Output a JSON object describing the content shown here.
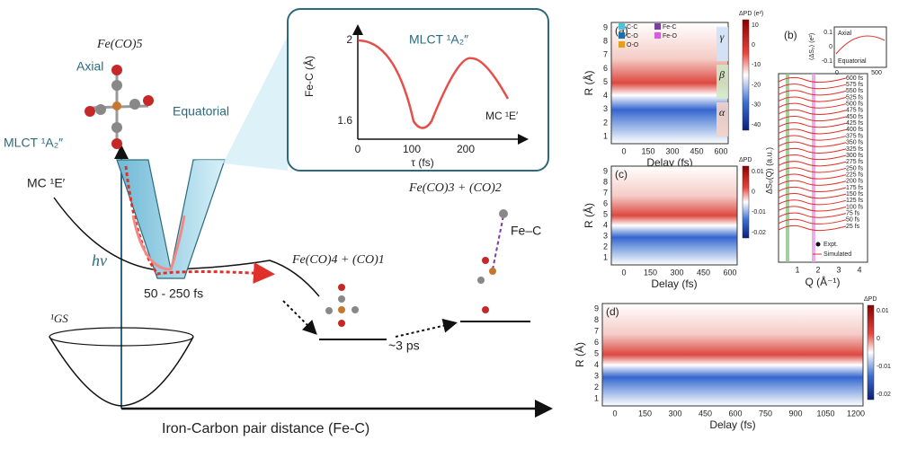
{
  "diagram": {
    "molecule": "Fe(CO)5",
    "axial": "Axial",
    "equatorial": "Equatorial",
    "mlct": "MLCT ¹A₂″",
    "mc": "MC ¹E′",
    "hv": "hν",
    "time_range": "50 - 250 fs",
    "ground": "¹GS",
    "product1": "Fe(CO)4 + (CO)1",
    "product2": "Fe(CO)3 + (CO)2",
    "bond": "Fe–C",
    "slow_time": "~3 ps",
    "x_axis": "Iron-Carbon pair distance (Fe-C)"
  },
  "inset": {
    "ylabel": "Fe-C (Å)",
    "xlabel": "τ (fs)",
    "yticks": [
      "2",
      "1.6"
    ],
    "xticks": [
      "0",
      "100",
      "200"
    ],
    "mlct": "MLCT ¹A₂″",
    "mc": "MC ¹E′"
  },
  "panel_a": {
    "label": "(a)",
    "ylabel": "R (Å)",
    "xlabel": "Delay (fs)",
    "yticks": [
      "1",
      "2",
      "3",
      "4",
      "5",
      "6",
      "7",
      "8",
      "9"
    ],
    "xticks": [
      "0",
      "150",
      "300",
      "450",
      "600"
    ],
    "legend": [
      "C-C",
      "C-O",
      "O-O",
      "Fe-C",
      "Fe-O"
    ],
    "regions": [
      "γ",
      "β",
      "α"
    ],
    "colorbar_title": "ΔPD (e²)",
    "colorbar_ticks": [
      "10",
      "0",
      "-10",
      "-20",
      "-30",
      "-40"
    ]
  },
  "panel_b": {
    "label": "(b)",
    "ylabel": "ΔS₀(Q) (a.u.)",
    "xlabel": "Q (Å⁻¹)",
    "xticks": [
      "1",
      "2",
      "3",
      "4"
    ],
    "delays": [
      "600 fs",
      "575 fs",
      "550 fs",
      "525 fs",
      "500 fs",
      "475 fs",
      "450 fs",
      "425 fs",
      "400 fs",
      "375 fs",
      "350 fs",
      "325 fs",
      "300 fs",
      "275 fs",
      "250 fs",
      "225 fs",
      "200 fs",
      "175 fs",
      "150 fs",
      "125 fs",
      "100 fs",
      "75 fs",
      "50 fs",
      "25 fs"
    ],
    "legend": [
      "Expt.",
      "Simulated"
    ],
    "inset_axial": "Axial",
    "inset_equatorial": "Equatorial",
    "inset_ylabel": "⟨ΔS₂⟩ (e²)",
    "inset_yticks": [
      "0.1",
      "0",
      "-0.1"
    ],
    "inset_xticks": [
      "0",
      "500"
    ]
  },
  "panel_c": {
    "label": "(c)",
    "ylabel": "R (Å)",
    "xlabel": "Delay (fs)",
    "yticks": [
      "1",
      "2",
      "3",
      "4",
      "5",
      "6",
      "7",
      "8",
      "9"
    ],
    "xticks": [
      "0",
      "150",
      "300",
      "450",
      "600"
    ],
    "colorbar_title": "ΔPD",
    "colorbar_ticks": [
      "0.01",
      "0",
      "-0.01",
      "-0.02"
    ]
  },
  "panel_d": {
    "label": "(d)",
    "ylabel": "R (Å)",
    "xlabel": "Delay (fs)",
    "yticks": [
      "1",
      "2",
      "3",
      "4",
      "5",
      "6",
      "7",
      "8",
      "9"
    ],
    "xticks": [
      "0",
      "150",
      "300",
      "450",
      "600",
      "750",
      "900",
      "1050",
      "1200"
    ],
    "colorbar_title": "ΔPD",
    "colorbar_ticks": [
      "0.01",
      "0",
      "-0.01",
      "-0.02"
    ]
  }
}
